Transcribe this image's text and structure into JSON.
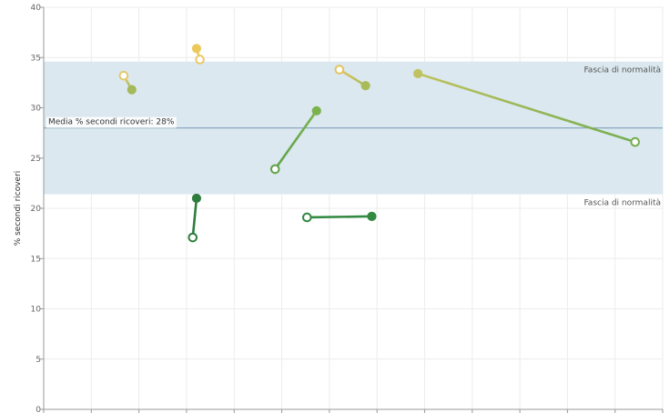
{
  "chart_data": {
    "type": "scatter",
    "ylabel": "% secondi ricoveri",
    "xlabel": "",
    "ylim": [
      0,
      40
    ],
    "yticks": [
      0,
      5,
      10,
      15,
      20,
      25,
      30,
      35,
      40
    ],
    "xlim": [
      0,
      13
    ],
    "x_tick_count": 13,
    "grid": true,
    "band": {
      "y_from": 21.4,
      "y_to": 34.6,
      "upper_label": "Fascia di normalità",
      "lower_label": "Fascia di normalità",
      "color": "#dbe8ef"
    },
    "reference_line": {
      "y": 28,
      "label": "Media % secondi ricoveri: 28%",
      "color": "#8aa8c0"
    },
    "series": [
      {
        "from": {
          "x": 1.68,
          "y": 33.2
        },
        "to": {
          "x": 1.85,
          "y": 31.8
        },
        "color_from": "#e4c96a",
        "color_to": "#a3b95a"
      },
      {
        "from": {
          "x": 3.28,
          "y": 34.8
        },
        "to": {
          "x": 3.21,
          "y": 35.9
        },
        "color_from": "#ebc96a",
        "color_to": "#ebc95a"
      },
      {
        "from": {
          "x": 3.13,
          "y": 17.1
        },
        "to": {
          "x": 3.21,
          "y": 21.0
        },
        "color_from": "#2e7d3e",
        "color_to": "#2e7d3e"
      },
      {
        "from": {
          "x": 4.86,
          "y": 23.9
        },
        "to": {
          "x": 5.73,
          "y": 29.7
        },
        "color_from": "#5ea24a",
        "color_to": "#7ab24e"
      },
      {
        "from": {
          "x": 5.53,
          "y": 19.1
        },
        "to": {
          "x": 6.89,
          "y": 19.2
        },
        "color_from": "#338a42",
        "color_to": "#338a42"
      },
      {
        "from": {
          "x": 6.21,
          "y": 33.8
        },
        "to": {
          "x": 6.76,
          "y": 32.2
        },
        "color_from": "#e2c460",
        "color_to": "#a8bb58"
      },
      {
        "from": {
          "x": 12.42,
          "y": 26.6
        },
        "to": {
          "x": 7.86,
          "y": 33.4
        },
        "color_from": "#74ac50",
        "color_to": "#bfc25e"
      }
    ]
  }
}
